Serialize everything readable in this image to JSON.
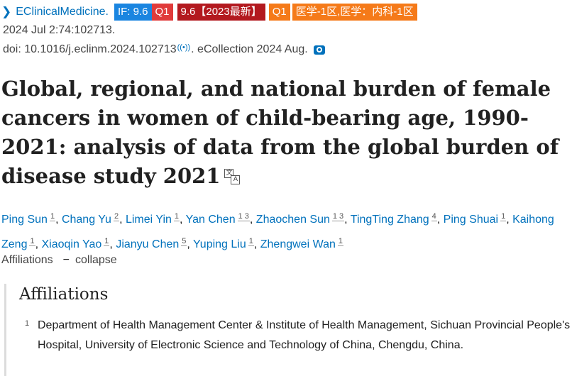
{
  "journal": {
    "name": "EClinicalMedicine.",
    "badges": {
      "impact_factor": "IF: 9.6",
      "quartile_a": "Q1",
      "ranking": "9.6【2023最新】",
      "quartile_b": "Q1",
      "cas": "医学-1区,医学：内科-1区"
    },
    "colors": {
      "link": "#0071bc",
      "if_badge": "#1a85e0",
      "q1_badge": "#e03b3b",
      "ranking_badge": "#b3191f",
      "orange_badge": "#f57a19"
    }
  },
  "citation": {
    "date": "2024 Jul 2:74:102713.",
    "doi": "doi: 10.1016/j.eclinm.2024.102713",
    "ecollection": ". eCollection 2024 Aug."
  },
  "article": {
    "title": "Global, regional, and national burden of female cancers in women of child-bearing age, 1990-2021: analysis of data from the global burden of disease study 2021"
  },
  "authors": [
    {
      "name": "Ping Sun",
      "aff": "1"
    },
    {
      "name": "Chang Yu",
      "aff": "2"
    },
    {
      "name": "Limei Yin",
      "aff": "1"
    },
    {
      "name": "Yan Chen",
      "aff": "1 3"
    },
    {
      "name": "Zhaochen Sun",
      "aff": "1 3"
    },
    {
      "name": "TingTing Zhang",
      "aff": "4"
    },
    {
      "name": "Ping Shuai",
      "aff": "1"
    },
    {
      "name": "Kaihong Zeng",
      "aff": "1"
    },
    {
      "name": "Xiaoqin Yao",
      "aff": "1"
    },
    {
      "name": "Jianyu Chen",
      "aff": "5"
    },
    {
      "name": "Yuping Liu",
      "aff": "1"
    },
    {
      "name": "Zhengwei Wan",
      "aff": "1"
    }
  ],
  "affiliations_toggle": {
    "label": "Affiliations",
    "action": "collapse"
  },
  "affiliations_panel": {
    "heading": "Affiliations",
    "items": [
      {
        "num": "1",
        "text": "Department of Health Management Center & Institute of Health Management, Sichuan Provincial People's Hospital, University of Electronic Science and Technology of China, Chengdu, China."
      }
    ]
  }
}
